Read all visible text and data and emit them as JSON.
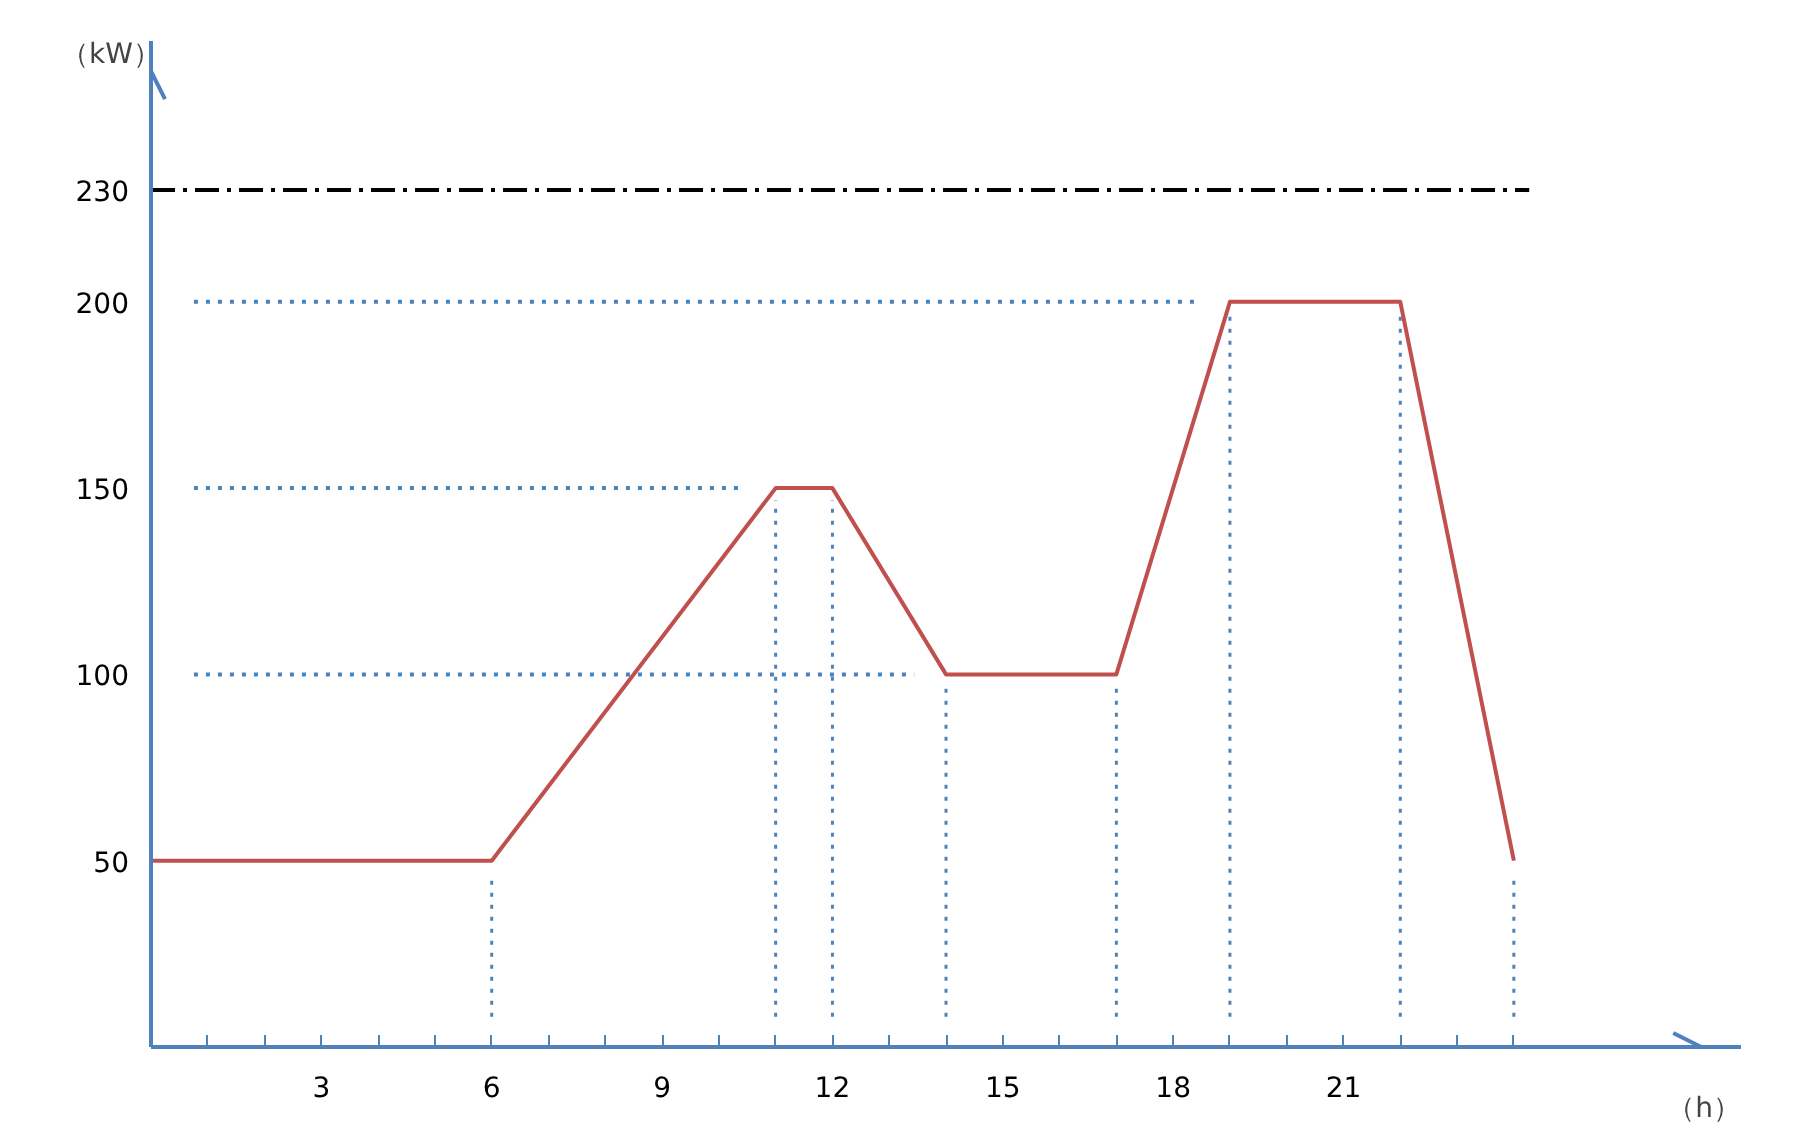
{
  "chart_data": {
    "type": "line",
    "xlabel": "（h）",
    "ylabel": "（kW）",
    "x": [
      0,
      6,
      11,
      12,
      14,
      17,
      19,
      22,
      24
    ],
    "series": [
      {
        "color": "#c0504d",
        "values": [
          50,
          50,
          150,
          150,
          100,
          100,
          200,
          200,
          50
        ]
      }
    ],
    "xlim": [
      0,
      28
    ],
    "ylim": [
      0,
      270
    ],
    "xticks": [
      {
        "value": 1,
        "label": null
      },
      {
        "value": 2,
        "label": null
      },
      3,
      {
        "value": 4,
        "label": null
      },
      {
        "value": 5,
        "label": null
      },
      6,
      {
        "value": 7,
        "label": null
      },
      {
        "value": 8,
        "label": null
      },
      9,
      {
        "value": 10,
        "label": null
      },
      {
        "value": 11,
        "label": null
      },
      12,
      {
        "value": 13,
        "label": null
      },
      {
        "value": 14,
        "label": null
      },
      15,
      {
        "value": 16,
        "label": null
      },
      {
        "value": 17,
        "label": null
      },
      18,
      {
        "value": 19,
        "label": null
      },
      {
        "value": 20,
        "label": null
      },
      21,
      {
        "value": 22,
        "label": null
      },
      {
        "value": 23,
        "label": null
      },
      {
        "value": 24,
        "label": null
      }
    ],
    "yticks": [
      50,
      100,
      150,
      200,
      230
    ],
    "ref_lines": [
      {
        "axis": "y",
        "value": 230,
        "color": "#000000",
        "line_style": "dashdot"
      },
      {
        "axis": "y",
        "value": 200,
        "color": "#4f81bd",
        "line_style": "dotted"
      },
      {
        "axis": "y",
        "value": 150,
        "color": "#4f81bd",
        "line_style": "dotted"
      },
      {
        "axis": "y",
        "value": 100,
        "color": "#4f81bd",
        "line_style": "dotted"
      },
      {
        "axis": "x",
        "value": 6,
        "color": "#4f81bd",
        "line_style": "dotted"
      },
      {
        "axis": "x",
        "value": 11,
        "color": "#4f81bd",
        "line_style": "dotted"
      },
      {
        "axis": "x",
        "value": 12,
        "color": "#4f81bd",
        "line_style": "dotted"
      },
      {
        "axis": "x",
        "value": 14,
        "color": "#4f81bd",
        "line_style": "dotted"
      },
      {
        "axis": "x",
        "value": 17,
        "color": "#4f81bd",
        "line_style": "dotted"
      },
      {
        "axis": "x",
        "value": 19,
        "color": "#4f81bd",
        "line_style": "dotted"
      },
      {
        "axis": "x",
        "value": 22,
        "color": "#4f81bd",
        "line_style": "dotted"
      },
      {
        "axis": "x",
        "value": 24,
        "color": "#4f81bd",
        "line_style": "dotted"
      }
    ],
    "grid": false,
    "marker": "none",
    "line_style": "solid"
  }
}
